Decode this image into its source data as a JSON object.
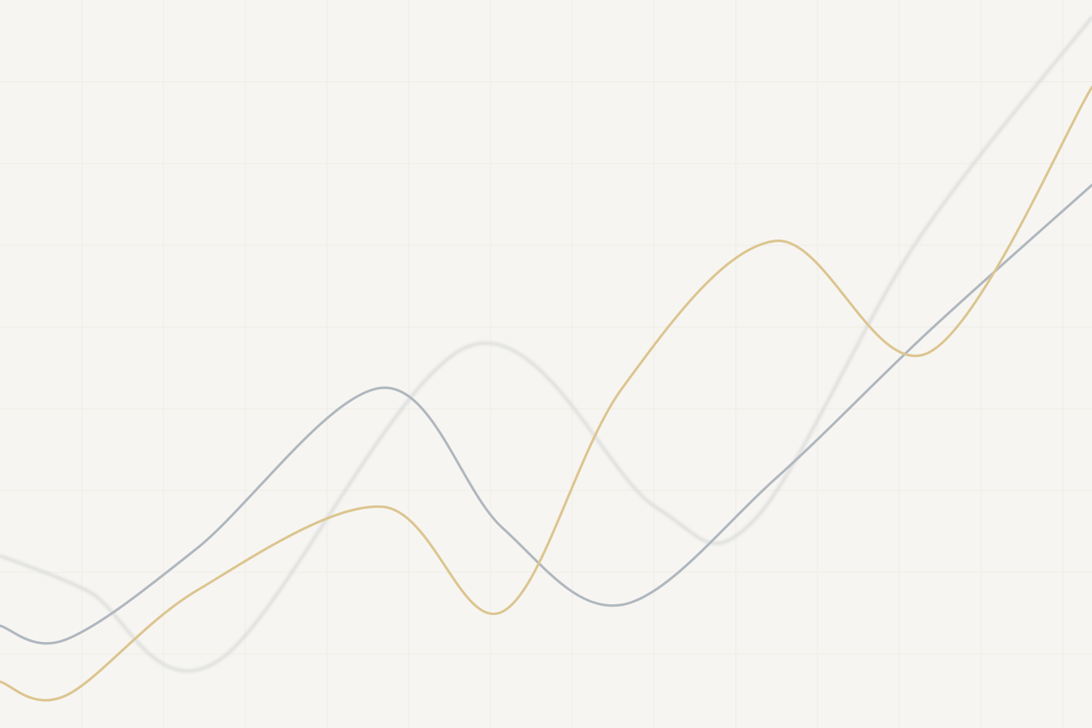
{
  "chart_data": {
    "type": "line",
    "title": "",
    "xlabel": "",
    "ylabel": "",
    "xlim": [
      0,
      1
    ],
    "ylim": [
      0,
      1
    ],
    "grid": true,
    "legend": "none",
    "x": [
      0.0,
      0.06,
      0.18,
      0.35,
      0.46,
      0.57,
      0.71,
      0.85,
      1.0
    ],
    "series": [
      {
        "color": "#b0b7bf",
        "values": [
          0.13,
          0.11,
          0.24,
          0.47,
          0.27,
          0.16,
          0.34,
          0.55,
          0.76
        ]
      },
      {
        "color": "#dcc590",
        "values": [
          0.05,
          0.03,
          0.18,
          0.3,
          0.15,
          0.47,
          0.68,
          0.52,
          0.9
        ]
      },
      {
        "color": "#d6d8d8",
        "values": [
          0.23,
          0.18,
          0.08,
          0.53,
          0.3,
          0.28,
          0.68,
          1.0
        ],
        "x": [
          0.0,
          0.08,
          0.2,
          0.43,
          0.6,
          0.69,
          0.84,
          1.0
        ],
        "blurred": true
      }
    ]
  }
}
